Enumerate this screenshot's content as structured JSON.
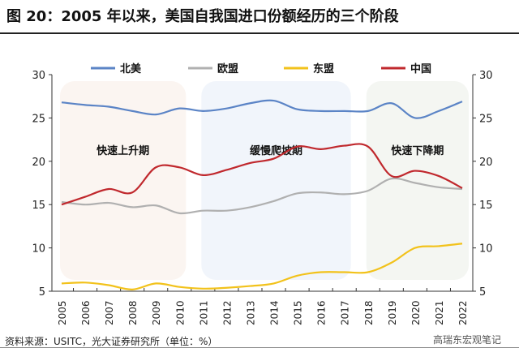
{
  "title": "图 20：2005 年以来，美国自我国进口份额经历的三个阶段",
  "source": "资料来源：USITC，光大证券研究所（单位：%）",
  "watermark": "高瑞东宏观笔记",
  "chart_data": {
    "type": "line",
    "title": "图 20：2005 年以来，美国自我国进口份额经历的三个阶段",
    "x": [
      "2005",
      "2006",
      "2007",
      "2008",
      "2009",
      "2010",
      "2011",
      "2012",
      "2013",
      "2014",
      "2015",
      "2016",
      "2017",
      "2018",
      "2019",
      "2020",
      "2021",
      "2022"
    ],
    "ylim": [
      5,
      30
    ],
    "yticks": [
      5,
      10,
      15,
      20,
      25,
      30
    ],
    "legend_position": "top",
    "series": [
      {
        "name": "北美",
        "color": "#5b84c6",
        "values": [
          26.8,
          26.5,
          26.3,
          25.8,
          25.4,
          26.1,
          25.8,
          26.1,
          26.7,
          27.0,
          26.0,
          25.8,
          25.8,
          25.8,
          26.7,
          25.0,
          25.8,
          26.9
        ]
      },
      {
        "name": "欧盟",
        "color": "#b0b0b0",
        "values": [
          15.3,
          15.0,
          15.2,
          14.7,
          14.9,
          14.0,
          14.3,
          14.3,
          14.7,
          15.4,
          16.3,
          16.4,
          16.2,
          16.6,
          18.0,
          17.5,
          17.0,
          16.8
        ]
      },
      {
        "name": "东盟",
        "color": "#f2c21b",
        "values": [
          5.9,
          6.0,
          5.7,
          5.2,
          5.9,
          5.5,
          5.3,
          5.4,
          5.6,
          5.9,
          6.8,
          7.2,
          7.2,
          7.2,
          8.3,
          10.0,
          10.2,
          10.5
        ]
      },
      {
        "name": "中国",
        "color": "#c0282d",
        "values": [
          15.0,
          15.9,
          16.8,
          16.4,
          19.3,
          19.3,
          18.4,
          19.0,
          19.8,
          20.3,
          21.7,
          21.4,
          21.8,
          21.7,
          18.3,
          18.9,
          18.3,
          16.9
        ]
      }
    ],
    "annotations": [
      {
        "text": "快速上升期",
        "from": "2005",
        "to": "2010",
        "color": "#fbf5f1"
      },
      {
        "text": "缓慢爬坡期",
        "from": "2011",
        "to": "2017",
        "color": "#f1f5fb"
      },
      {
        "text": "快速下降期",
        "from": "2018",
        "to": "2022",
        "color": "#f4f6f2"
      }
    ]
  }
}
